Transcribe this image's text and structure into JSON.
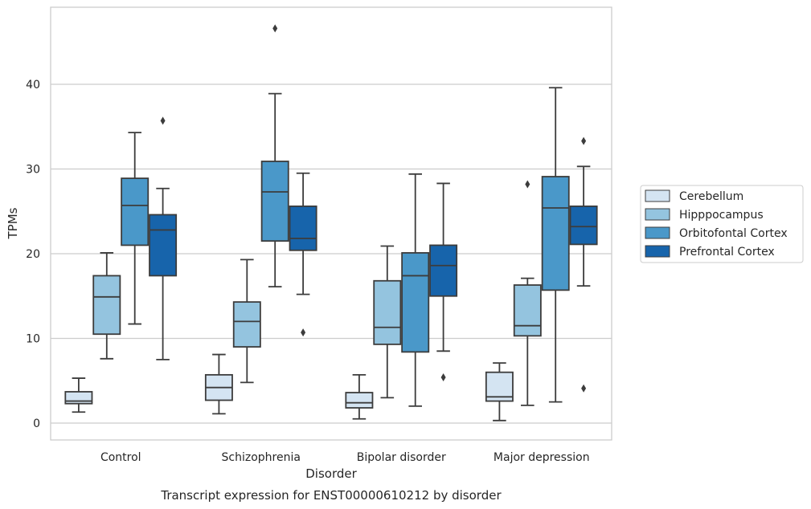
{
  "chart_data": {
    "type": "box",
    "xlabel": "Disorder",
    "ylabel": "TPMs",
    "caption": "Transcript expression for ENST00000610212 by disorder",
    "categories": [
      "Control",
      "Schizophrenia",
      "Bipolar disorder",
      "Major depression"
    ],
    "ylim": [
      -2,
      49
    ],
    "yticks": [
      0,
      10,
      20,
      30,
      40
    ],
    "grid": "horizontal",
    "legend_position": "right",
    "series": [
      {
        "name": "Cerebellum",
        "color": "#d4e4f2",
        "boxes": [
          {
            "whislo": 1.3,
            "q1": 2.3,
            "med": 2.6,
            "q3": 3.7,
            "whishi": 5.3,
            "fliers": []
          },
          {
            "whislo": 1.1,
            "q1": 2.7,
            "med": 4.2,
            "q3": 5.7,
            "whishi": 8.1,
            "fliers": []
          },
          {
            "whislo": 0.5,
            "q1": 1.8,
            "med": 2.4,
            "q3": 3.6,
            "whishi": 5.7,
            "fliers": []
          },
          {
            "whislo": 0.3,
            "q1": 2.6,
            "med": 3.1,
            "q3": 6.0,
            "whishi": 7.1,
            "fliers": []
          }
        ]
      },
      {
        "name": "Hipppocampus",
        "color": "#94c4df",
        "boxes": [
          {
            "whislo": 7.6,
            "q1": 10.5,
            "med": 14.9,
            "q3": 17.4,
            "whishi": 20.1,
            "fliers": []
          },
          {
            "whislo": 4.8,
            "q1": 9.0,
            "med": 12.0,
            "q3": 14.3,
            "whishi": 19.3,
            "fliers": []
          },
          {
            "whislo": 3.0,
            "q1": 9.3,
            "med": 11.3,
            "q3": 16.8,
            "whishi": 20.9,
            "fliers": []
          },
          {
            "whislo": 2.1,
            "q1": 10.3,
            "med": 11.5,
            "q3": 16.3,
            "whishi": 17.1,
            "fliers": [
              28.2
            ]
          }
        ]
      },
      {
        "name": "Orbitofontal Cortex",
        "color": "#4a98c9",
        "boxes": [
          {
            "whislo": 11.7,
            "q1": 21.0,
            "med": 25.7,
            "q3": 28.9,
            "whishi": 34.3,
            "fliers": []
          },
          {
            "whislo": 16.1,
            "q1": 21.5,
            "med": 27.3,
            "q3": 30.9,
            "whishi": 38.9,
            "fliers": [
              46.6
            ]
          },
          {
            "whislo": 2.0,
            "q1": 8.4,
            "med": 17.4,
            "q3": 20.1,
            "whishi": 29.4,
            "fliers": []
          },
          {
            "whislo": 2.5,
            "q1": 15.7,
            "med": 25.4,
            "q3": 29.1,
            "whishi": 39.6,
            "fliers": []
          }
        ]
      },
      {
        "name": "Prefrontal Cortex",
        "color": "#1764ab",
        "boxes": [
          {
            "whislo": 7.5,
            "q1": 17.4,
            "med": 22.8,
            "q3": 24.6,
            "whishi": 27.7,
            "fliers": [
              35.7
            ]
          },
          {
            "whislo": 15.2,
            "q1": 20.4,
            "med": 21.8,
            "q3": 25.6,
            "whishi": 29.5,
            "fliers": [
              10.7
            ]
          },
          {
            "whislo": 8.5,
            "q1": 15.0,
            "med": 18.6,
            "q3": 21.0,
            "whishi": 28.3,
            "fliers": [
              5.4
            ]
          },
          {
            "whislo": 16.2,
            "q1": 21.1,
            "med": 23.2,
            "q3": 25.6,
            "whishi": 30.3,
            "fliers": [
              33.3,
              4.1
            ]
          }
        ]
      }
    ]
  }
}
